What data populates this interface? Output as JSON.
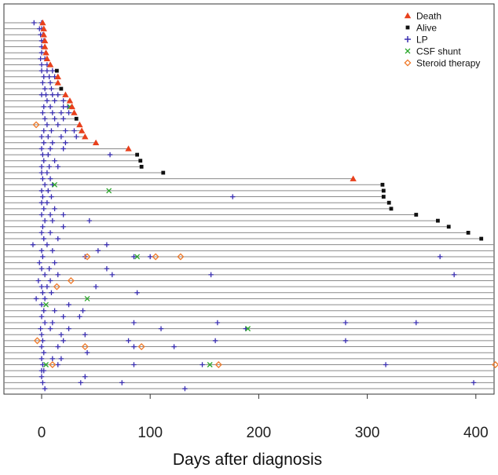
{
  "chart_data": {
    "type": "scatter",
    "title": "",
    "xlabel": "Days after diagnosis",
    "ylabel": "",
    "xlim": [
      -35,
      420
    ],
    "xticks": [
      0,
      100,
      200,
      300,
      400
    ],
    "tick_labels": [
      "0",
      "100",
      "200",
      "300",
      "400"
    ],
    "grid": false,
    "legend_position": "top-right",
    "legend": [
      {
        "label": "Death",
        "marker": "triangle",
        "color": "#e8401c"
      },
      {
        "label": "Alive",
        "marker": "square",
        "color": "#111111"
      },
      {
        "label": "LP",
        "marker": "plus",
        "color": "#3a2fb0"
      },
      {
        "label": "CSF shunt",
        "marker": "x",
        "color": "#2aa62a"
      },
      {
        "label": "Steroid therapy",
        "marker": "diamond",
        "color": "#f07a2a"
      }
    ],
    "colors": {
      "line": "#8a8a8a",
      "death": "#e8401c",
      "alive": "#111111",
      "lp": "#3a2fb0",
      "shunt": "#2aa62a",
      "steroid": "#f07a2a"
    },
    "patients": [
      {
        "end": 1,
        "status": "death",
        "lp": [
          -7,
          0
        ]
      },
      {
        "end": 2,
        "status": "death",
        "lp": [
          -2,
          0
        ]
      },
      {
        "end": 2,
        "status": "death",
        "lp": [
          -1,
          1
        ]
      },
      {
        "end": 3,
        "status": "death",
        "lp": [
          0,
          2
        ]
      },
      {
        "end": 3,
        "status": "death",
        "lp": [
          0
        ]
      },
      {
        "end": 4,
        "status": "death",
        "lp": [
          0
        ]
      },
      {
        "end": 5,
        "status": "death",
        "lp": [
          -1,
          3
        ]
      },
      {
        "end": 8,
        "status": "death",
        "lp": [
          0,
          5
        ]
      },
      {
        "end": 14,
        "status": "alive",
        "lp": [
          0,
          5,
          10
        ]
      },
      {
        "end": 15,
        "status": "death",
        "lp": [
          2,
          7,
          12
        ]
      },
      {
        "end": 15,
        "status": "death",
        "lp": [
          1,
          8
        ]
      },
      {
        "end": 18,
        "status": "alive",
        "lp": [
          3,
          9
        ]
      },
      {
        "end": 22,
        "status": "death",
        "lp": [
          0,
          4,
          10,
          15
        ]
      },
      {
        "end": 26,
        "status": "death",
        "lp": [
          5,
          12,
          20
        ]
      },
      {
        "end": 28,
        "status": "death",
        "lp": [
          2,
          8,
          20,
          24
        ],
        "shunt": [
          26
        ]
      },
      {
        "end": 30,
        "status": "death",
        "lp": [
          1,
          10,
          18,
          25
        ]
      },
      {
        "end": 32,
        "status": "alive",
        "lp": [
          3,
          12,
          20
        ]
      },
      {
        "end": 35,
        "status": "death",
        "lp": [
          5,
          15
        ],
        "steroid": [
          -5
        ]
      },
      {
        "end": 37,
        "status": "death",
        "lp": [
          2,
          9,
          22,
          30
        ]
      },
      {
        "end": 40,
        "status": "death",
        "lp": [
          0,
          6,
          18,
          32
        ]
      },
      {
        "end": 50,
        "status": "death",
        "lp": [
          2,
          10,
          22
        ]
      },
      {
        "end": 80,
        "status": "death",
        "lp": [
          0,
          8,
          20
        ]
      },
      {
        "end": 88,
        "status": "alive",
        "lp": [
          1,
          6,
          63
        ]
      },
      {
        "end": 91,
        "status": "alive",
        "lp": [
          2,
          12
        ]
      },
      {
        "end": 92,
        "status": "alive",
        "lp": [
          0,
          7,
          15
        ]
      },
      {
        "end": 112,
        "status": "alive",
        "lp": [
          0,
          5
        ]
      },
      {
        "end": 287,
        "status": "death",
        "lp": [
          1,
          8
        ]
      },
      {
        "end": 314,
        "status": "alive",
        "lp": [
          3,
          10
        ],
        "shunt": [
          12
        ]
      },
      {
        "end": 315,
        "status": "alive",
        "lp": [
          0,
          6
        ],
        "shunt": [
          62
        ]
      },
      {
        "end": 315,
        "status": "alive",
        "lp": [
          1,
          9,
          176
        ]
      },
      {
        "end": 320,
        "status": "alive",
        "lp": [
          0,
          5
        ]
      },
      {
        "end": 322,
        "status": "alive",
        "lp": [
          2,
          12
        ]
      },
      {
        "end": 345,
        "status": "alive",
        "lp": [
          0,
          8,
          20
        ]
      },
      {
        "end": 365,
        "status": "alive",
        "lp": [
          3,
          10,
          44
        ]
      },
      {
        "end": 375,
        "status": "alive",
        "lp": [
          1,
          20
        ]
      },
      {
        "end": 393,
        "status": "alive",
        "lp": [
          0,
          8
        ]
      },
      {
        "end": 405,
        "status": "alive",
        "lp": [
          2,
          15
        ]
      },
      {
        "end": 420,
        "status": "none",
        "lp": [
          -8,
          5,
          60
        ]
      },
      {
        "end": 420,
        "status": "none",
        "lp": [
          0,
          10,
          52
        ]
      },
      {
        "end": 420,
        "status": "none",
        "lp": [
          1,
          40,
          85,
          100,
          367
        ],
        "shunt": [
          88
        ],
        "steroid": [
          42,
          105,
          128
        ]
      },
      {
        "end": 420,
        "status": "none",
        "lp": [
          -2,
          12
        ]
      },
      {
        "end": 420,
        "status": "none",
        "lp": [
          0,
          7,
          60
        ]
      },
      {
        "end": 420,
        "status": "none",
        "lp": [
          3,
          15,
          65,
          156,
          380
        ]
      },
      {
        "end": 420,
        "status": "none",
        "lp": [
          -3,
          8
        ],
        "steroid": [
          27
        ]
      },
      {
        "end": 420,
        "status": "none",
        "lp": [
          0,
          5,
          50
        ],
        "steroid": [
          14
        ]
      },
      {
        "end": 420,
        "status": "none",
        "lp": [
          1,
          9,
          88
        ]
      },
      {
        "end": 420,
        "status": "none",
        "lp": [
          -5,
          3
        ],
        "shunt": [
          42
        ]
      },
      {
        "end": 420,
        "status": "none",
        "lp": [
          0,
          25
        ],
        "shunt": [
          4
        ]
      },
      {
        "end": 420,
        "status": "none",
        "lp": [
          2,
          12,
          38
        ]
      },
      {
        "end": 420,
        "status": "none",
        "lp": [
          0,
          20,
          35
        ]
      },
      {
        "end": 420,
        "status": "none",
        "lp": [
          3,
          10,
          85,
          162,
          280,
          345
        ]
      },
      {
        "end": 420,
        "status": "none",
        "lp": [
          -1,
          8,
          25,
          110,
          188
        ],
        "shunt": [
          190
        ]
      },
      {
        "end": 420,
        "status": "none",
        "lp": [
          0,
          18,
          40
        ]
      },
      {
        "end": 420,
        "status": "none",
        "lp": [
          1,
          20,
          80,
          160,
          280
        ],
        "steroid": [
          -4
        ]
      },
      {
        "end": 420,
        "status": "none",
        "lp": [
          0,
          15,
          85,
          122
        ],
        "steroid": [
          40,
          92
        ]
      },
      {
        "end": 420,
        "status": "none",
        "lp": [
          2,
          42
        ]
      },
      {
        "end": 420,
        "status": "none",
        "lp": [
          0,
          10,
          18
        ]
      },
      {
        "end": 420,
        "status": "none",
        "lp": [
          1,
          15,
          85,
          148,
          317
        ],
        "shunt": [
          4,
          155
        ],
        "steroid": [
          10,
          163,
          418
        ]
      },
      {
        "end": 420,
        "status": "none",
        "lp": [
          0,
          2
        ]
      },
      {
        "end": 420,
        "status": "none",
        "lp": [
          0,
          40
        ]
      },
      {
        "end": 420,
        "status": "none",
        "lp": [
          1,
          36,
          74,
          398
        ]
      },
      {
        "end": 420,
        "status": "none",
        "lp": [
          3,
          132
        ]
      }
    ]
  }
}
